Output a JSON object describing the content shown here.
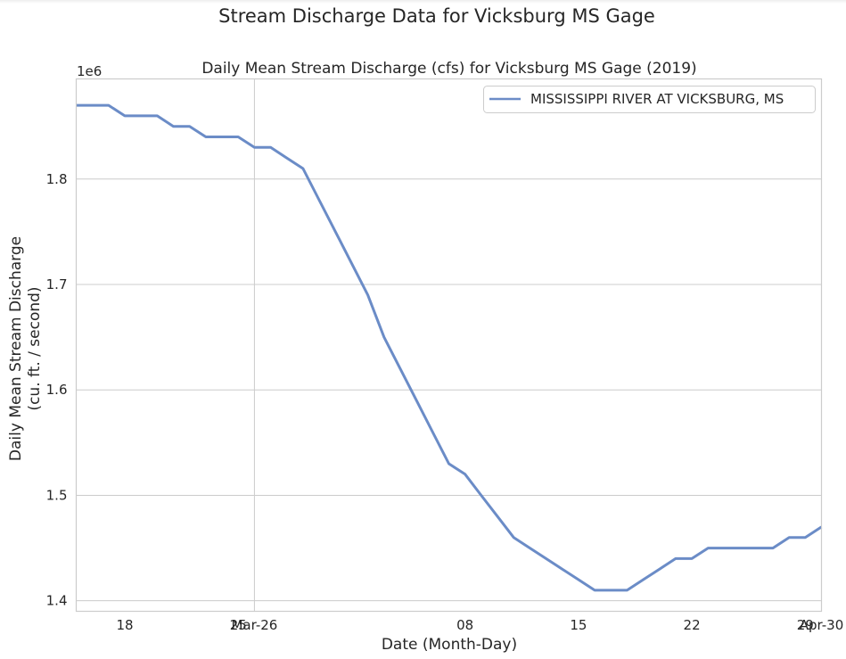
{
  "chart_data": {
    "type": "line",
    "suptitle": "Stream Discharge Data for Vicksburg MS Gage",
    "title": "Daily Mean Stream Discharge (cfs) for Vicksburg MS Gage (2019)",
    "xlabel": "Date (Month-Day)",
    "ylabel_line1": "Daily Mean Stream Discharge",
    "ylabel_line2": "(cu. ft. / second)",
    "y_offset_text": "1e6",
    "ylim": [
      1390000,
      1895000
    ],
    "xlim": [
      "2019-03-15",
      "2019-04-30"
    ],
    "y_ticks": [
      {
        "value": 1400000,
        "label": "1.4"
      },
      {
        "value": 1500000,
        "label": "1.5"
      },
      {
        "value": 1600000,
        "label": "1.6"
      },
      {
        "value": 1700000,
        "label": "1.7"
      },
      {
        "value": 1800000,
        "label": "1.8"
      }
    ],
    "x_ticks": [
      {
        "value": "2019-03-18",
        "label": "18",
        "grid": false
      },
      {
        "value": "2019-03-25",
        "label": "25",
        "grid": false
      },
      {
        "value": "2019-03-26",
        "label": "Mar-26",
        "grid": true
      },
      {
        "value": "2019-04-08",
        "label": "08",
        "grid": false
      },
      {
        "value": "2019-04-15",
        "label": "15",
        "grid": false
      },
      {
        "value": "2019-04-22",
        "label": "22",
        "grid": false
      },
      {
        "value": "2019-04-29",
        "label": "29",
        "grid": false
      },
      {
        "value": "2019-04-30",
        "label": "Apr-30",
        "grid": true
      }
    ],
    "grid": true,
    "legend_position": "top-right",
    "series": [
      {
        "name": "MISSISSIPPI RIVER AT VICKSBURG, MS",
        "color": "#6b8cc7",
        "x": [
          "2019-03-15",
          "2019-03-16",
          "2019-03-17",
          "2019-03-18",
          "2019-03-19",
          "2019-03-20",
          "2019-03-21",
          "2019-03-22",
          "2019-03-23",
          "2019-03-24",
          "2019-03-25",
          "2019-03-26",
          "2019-03-27",
          "2019-03-28",
          "2019-03-29",
          "2019-03-30",
          "2019-03-31",
          "2019-04-01",
          "2019-04-02",
          "2019-04-03",
          "2019-04-04",
          "2019-04-05",
          "2019-04-06",
          "2019-04-07",
          "2019-04-08",
          "2019-04-09",
          "2019-04-10",
          "2019-04-11",
          "2019-04-12",
          "2019-04-13",
          "2019-04-14",
          "2019-04-15",
          "2019-04-16",
          "2019-04-17",
          "2019-04-18",
          "2019-04-19",
          "2019-04-20",
          "2019-04-21",
          "2019-04-22",
          "2019-04-23",
          "2019-04-24",
          "2019-04-25",
          "2019-04-26",
          "2019-04-27",
          "2019-04-28",
          "2019-04-29",
          "2019-04-30"
        ],
        "values": [
          1870000,
          1870000,
          1870000,
          1860000,
          1860000,
          1860000,
          1850000,
          1850000,
          1840000,
          1840000,
          1840000,
          1830000,
          1830000,
          1820000,
          1810000,
          1780000,
          1750000,
          1720000,
          1690000,
          1650000,
          1620000,
          1590000,
          1560000,
          1530000,
          1520000,
          1500000,
          1480000,
          1460000,
          1450000,
          1440000,
          1430000,
          1420000,
          1410000,
          1410000,
          1410000,
          1420000,
          1430000,
          1440000,
          1440000,
          1450000,
          1450000,
          1450000,
          1450000,
          1450000,
          1460000,
          1460000,
          1470000
        ]
      }
    ]
  }
}
